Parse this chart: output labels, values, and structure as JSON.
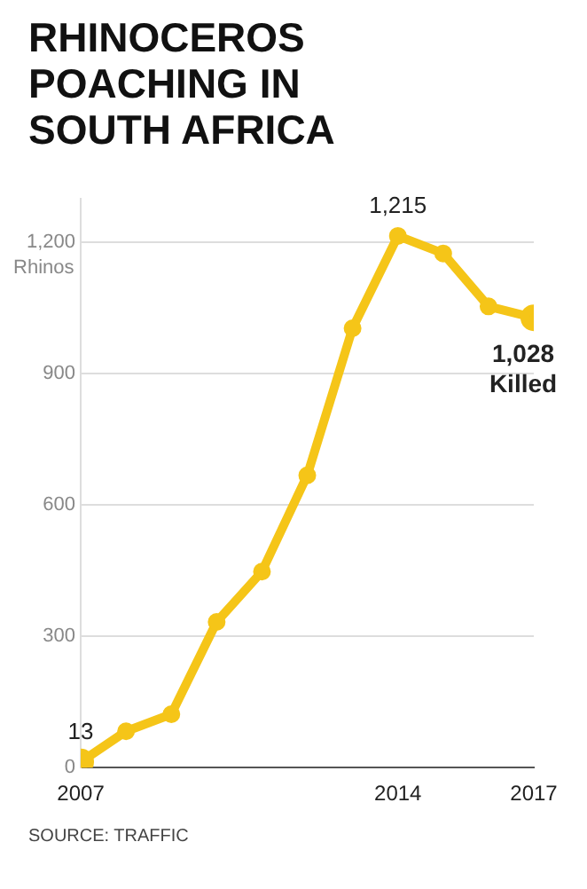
{
  "chart_data": {
    "type": "line",
    "title": "RHINOCEROS POACHING IN SOUTH AFRICA",
    "ylabel": "Rhinos",
    "x": [
      2007,
      2008,
      2009,
      2010,
      2011,
      2012,
      2013,
      2014,
      2015,
      2016,
      2017
    ],
    "series": [
      {
        "color": "#f5c518",
        "values": [
          13,
          83,
          122,
          333,
          448,
          668,
          1004,
          1215,
          1175,
          1054,
          1028
        ],
        "value_labels": [
          "13",
          null,
          null,
          null,
          null,
          null,
          null,
          "1,215",
          null,
          null,
          "1,028"
        ]
      }
    ],
    "xlim": [
      2007,
      2017
    ],
    "xticks": [
      2007,
      2014,
      2017
    ],
    "ylim": [
      0,
      1300
    ],
    "yticks": [
      0,
      300,
      600,
      900,
      {
        "value": 1200,
        "label": "1,200"
      }
    ],
    "grid": "y",
    "legend": false,
    "marker": "circle",
    "line_style": "solid",
    "annotations": [
      {
        "text": "Killed",
        "x": 2017,
        "y": 1028
      },
      "SOURCE: TRAFFIC"
    ]
  }
}
